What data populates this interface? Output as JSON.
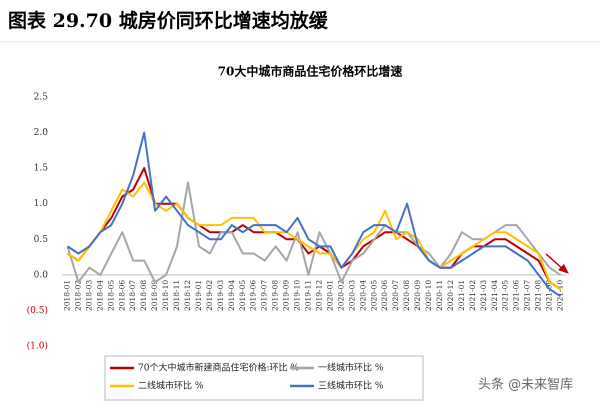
{
  "heading": "图表 29.70 城房价同环比增速均放缓",
  "watermark": "头条 @未来智库",
  "chart_data": {
    "type": "line",
    "title": "70大中城市商品住宅价格环比增速",
    "categories": [
      "2018-01",
      "2018-02",
      "2018-03",
      "2018-04",
      "2018-05",
      "2018-06",
      "2018-07",
      "2018-08",
      "2018-09",
      "2018-10",
      "2018-11",
      "2018-12",
      "2019-01",
      "2019-02",
      "2019-03",
      "2019-04",
      "2019-05",
      "2019-06",
      "2019-07",
      "2019-08",
      "2019-09",
      "2019-10",
      "2019-11",
      "2019-12",
      "2020-01",
      "2020-02",
      "2020-03",
      "2020-04",
      "2020-05",
      "2020-06",
      "2020-07",
      "2020-08",
      "2020-09",
      "2020-10",
      "2020-11",
      "2020-12",
      "2021-01",
      "2021-02",
      "2021-03",
      "2021-04",
      "2021-05",
      "2021-06",
      "2021-07",
      "2021-08",
      "2021-09",
      "2021-10"
    ],
    "series": [
      {
        "name": "70个大中城市新建商品住宅价格:环比 %",
        "color": "#c00000",
        "values": [
          0.3,
          0.2,
          0.4,
          0.6,
          0.8,
          1.1,
          1.2,
          1.5,
          1.0,
          1.0,
          1.0,
          0.8,
          0.7,
          0.6,
          0.6,
          0.6,
          0.7,
          0.6,
          0.6,
          0.6,
          0.5,
          0.5,
          0.3,
          0.4,
          0.3,
          0.1,
          0.2,
          0.4,
          0.5,
          0.6,
          0.6,
          0.5,
          0.4,
          0.2,
          0.1,
          0.1,
          0.3,
          0.4,
          0.4,
          0.5,
          0.5,
          0.4,
          0.3,
          0.2,
          -0.1,
          -0.2
        ]
      },
      {
        "name": "一线城市环比 %",
        "color": "#a6a6a6",
        "values": [
          0.4,
          -0.1,
          0.1,
          0.0,
          0.3,
          0.6,
          0.2,
          0.2,
          -0.1,
          0.0,
          0.4,
          1.3,
          0.4,
          0.3,
          0.6,
          0.6,
          0.3,
          0.3,
          0.2,
          0.4,
          0.2,
          0.6,
          0.0,
          0.6,
          0.3,
          -0.1,
          0.2,
          0.3,
          0.5,
          0.7,
          0.6,
          0.6,
          0.4,
          0.3,
          0.1,
          0.3,
          0.6,
          0.5,
          0.5,
          0.6,
          0.7,
          0.7,
          0.5,
          0.3,
          0.1,
          0.0
        ]
      },
      {
        "name": "二线城市环比 %",
        "color": "#ffc000",
        "values": [
          0.3,
          0.2,
          0.4,
          0.6,
          0.9,
          1.2,
          1.1,
          1.3,
          1.0,
          0.9,
          1.0,
          0.8,
          0.7,
          0.7,
          0.7,
          0.8,
          0.8,
          0.8,
          0.6,
          0.6,
          0.6,
          0.5,
          0.4,
          0.3,
          0.3,
          0.1,
          0.3,
          0.5,
          0.6,
          0.9,
          0.5,
          0.6,
          0.5,
          0.2,
          0.1,
          0.2,
          0.3,
          0.4,
          0.5,
          0.6,
          0.6,
          0.5,
          0.4,
          0.3,
          -0.1,
          -0.2
        ]
      },
      {
        "name": "三线城市环比 %",
        "color": "#4472c4",
        "values": [
          0.4,
          0.3,
          0.4,
          0.6,
          0.7,
          1.0,
          1.4,
          2.0,
          0.9,
          1.1,
          0.9,
          0.7,
          0.6,
          0.5,
          0.5,
          0.7,
          0.6,
          0.7,
          0.7,
          0.7,
          0.6,
          0.8,
          0.5,
          0.4,
          0.4,
          0.1,
          0.3,
          0.6,
          0.7,
          0.7,
          0.6,
          1.0,
          0.4,
          0.2,
          0.1,
          0.1,
          0.2,
          0.3,
          0.4,
          0.4,
          0.4,
          0.3,
          0.2,
          0.0,
          -0.2,
          -0.3
        ]
      }
    ],
    "ylim": [
      -1,
      2.5
    ],
    "yticks": [
      2.5,
      {
        "value": 2,
        "label": "2.0"
      },
      1.5,
      {
        "value": 1,
        "label": "1.0"
      },
      0.5,
      {
        "value": 0,
        "label": "0.0"
      },
      {
        "value": -0.5,
        "label": "(0.5)"
      },
      {
        "value": -1,
        "label": "(1.0)"
      }
    ],
    "negative_color": "#c00000",
    "legend": "bottom"
  }
}
